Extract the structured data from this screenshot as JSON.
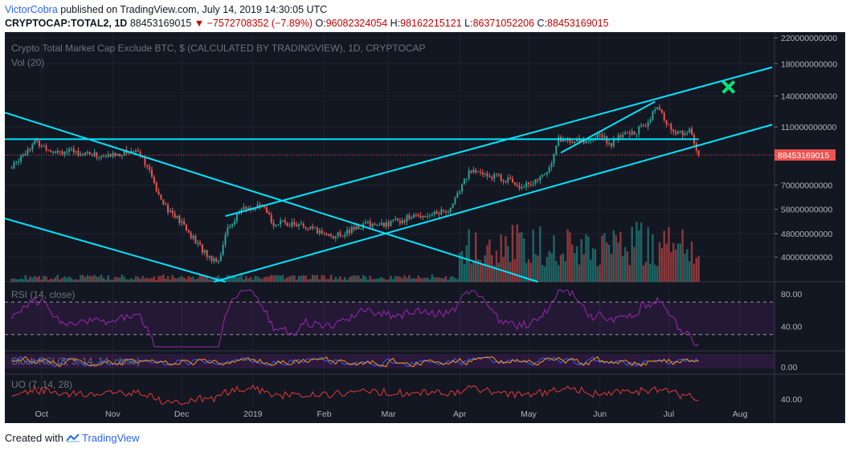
{
  "header": {
    "author": "VictorCobra",
    "published_text": "published on TradingView.com, July 14, 2019 14:30:05 UTC",
    "symbol": "CRYPTOCAP:TOTAL2, 1D",
    "last": "88453169015",
    "change": "▼ −7572708352 (−7.89%)",
    "o_label": "O:",
    "o_value": "96082324054",
    "h_label": "H:",
    "h_value": "98162215121",
    "l_label": "L:",
    "l_value": "86371052206",
    "c_label": "C:",
    "c_value": "88453169015"
  },
  "panes": {
    "title": "Crypto Total Market Cap Exclude BTC, $ (CALCULATED BY TRADINGVIEW), 1D, CRYPTOCAP",
    "volume": "Vol (20)",
    "rsi": "RSI (14, close)",
    "stoch": "Stoch RSI (3, 3, 14, 14, close)",
    "uo": "UO (7, 14, 28)"
  },
  "footer": {
    "prefix": "Created with",
    "brand": "TradingView"
  },
  "colors": {
    "up": "#26a69a",
    "down": "#ef5350",
    "trendline": "#00e5ff",
    "price_tag": "#ef5350",
    "rsi": "#9c27b0",
    "uo": "#e53935",
    "target": "#00e676"
  },
  "chart_data": {
    "type": "candlestick",
    "title": "Crypto Total Market Cap Exclude BTC, $ (CALCULATED BY TRADINGVIEW), 1D, CRYPTOCAP",
    "price_scale": "log",
    "ylim": [
      33000000000,
      230000000000
    ],
    "y_ticks": [
      "220000000000",
      "180000000000",
      "140000000000",
      "110000000000",
      "88453169015",
      "70000000000",
      "58000000000",
      "48000000000",
      "40000000000"
    ],
    "x_ticks": [
      "Oct",
      "Nov",
      "Dec",
      "2019",
      "Feb",
      "Mar",
      "Apr",
      "May",
      "Jun",
      "Jul",
      "Aug"
    ],
    "last_price": "88453169015",
    "close_series": {
      "dates": [
        "2018-09-18",
        "2018-09-22",
        "2018-09-28",
        "2018-10-05",
        "2018-10-12",
        "2018-10-20",
        "2018-10-28",
        "2018-11-05",
        "2018-11-12",
        "2018-11-15",
        "2018-11-20",
        "2018-11-25",
        "2018-12-01",
        "2018-12-07",
        "2018-12-13",
        "2018-12-17",
        "2018-12-21",
        "2018-12-27",
        "2019-01-05",
        "2019-01-10",
        "2019-01-18",
        "2019-01-28",
        "2019-02-06",
        "2019-02-12",
        "2019-02-20",
        "2019-02-25",
        "2019-03-05",
        "2019-03-12",
        "2019-03-20",
        "2019-03-28",
        "2019-04-02",
        "2019-04-05",
        "2019-04-12",
        "2019-04-20",
        "2019-04-27",
        "2019-05-05",
        "2019-05-10",
        "2019-05-14",
        "2019-05-18",
        "2019-05-25",
        "2019-06-01",
        "2019-06-06",
        "2019-06-10",
        "2019-06-16",
        "2019-06-22",
        "2019-06-26",
        "2019-06-29",
        "2019-07-02",
        "2019-07-06",
        "2019-07-10",
        "2019-07-12",
        "2019-07-14"
      ],
      "close": [
        80000000000,
        88000000000,
        98000000000,
        92000000000,
        91000000000,
        90000000000,
        87000000000,
        90000000000,
        92000000000,
        84000000000,
        68000000000,
        58000000000,
        52000000000,
        45000000000,
        40000000000,
        39000000000,
        50000000000,
        58000000000,
        59000000000,
        52000000000,
        52000000000,
        49000000000,
        47000000000,
        49000000000,
        52000000000,
        51000000000,
        53000000000,
        55000000000,
        56000000000,
        58000000000,
        70000000000,
        78000000000,
        76000000000,
        74000000000,
        70000000000,
        72000000000,
        80000000000,
        100000000000,
        99000000000,
        98000000000,
        104000000000,
        96000000000,
        103000000000,
        105000000000,
        115000000000,
        128000000000,
        117000000000,
        108000000000,
        104000000000,
        108000000000,
        96000000000,
        88453169015
      ]
    },
    "volume": {
      "name": "Vol (20)"
    },
    "indicators": [
      {
        "name": "RSI (14, close)",
        "levels": [
          70,
          30
        ],
        "y_ticks": [
          "80.00",
          "40.00"
        ]
      },
      {
        "name": "Stoch RSI (3, 3, 14, 14, close)",
        "y_ticks": [
          "0.00"
        ]
      },
      {
        "name": "UO (7, 14, 28)",
        "y_ticks": [
          "40.00"
        ]
      }
    ],
    "annotations": [
      "ascending channel trend lines",
      "descending channel trend lines",
      "horizontal resistance line",
      "green X target marker"
    ]
  }
}
